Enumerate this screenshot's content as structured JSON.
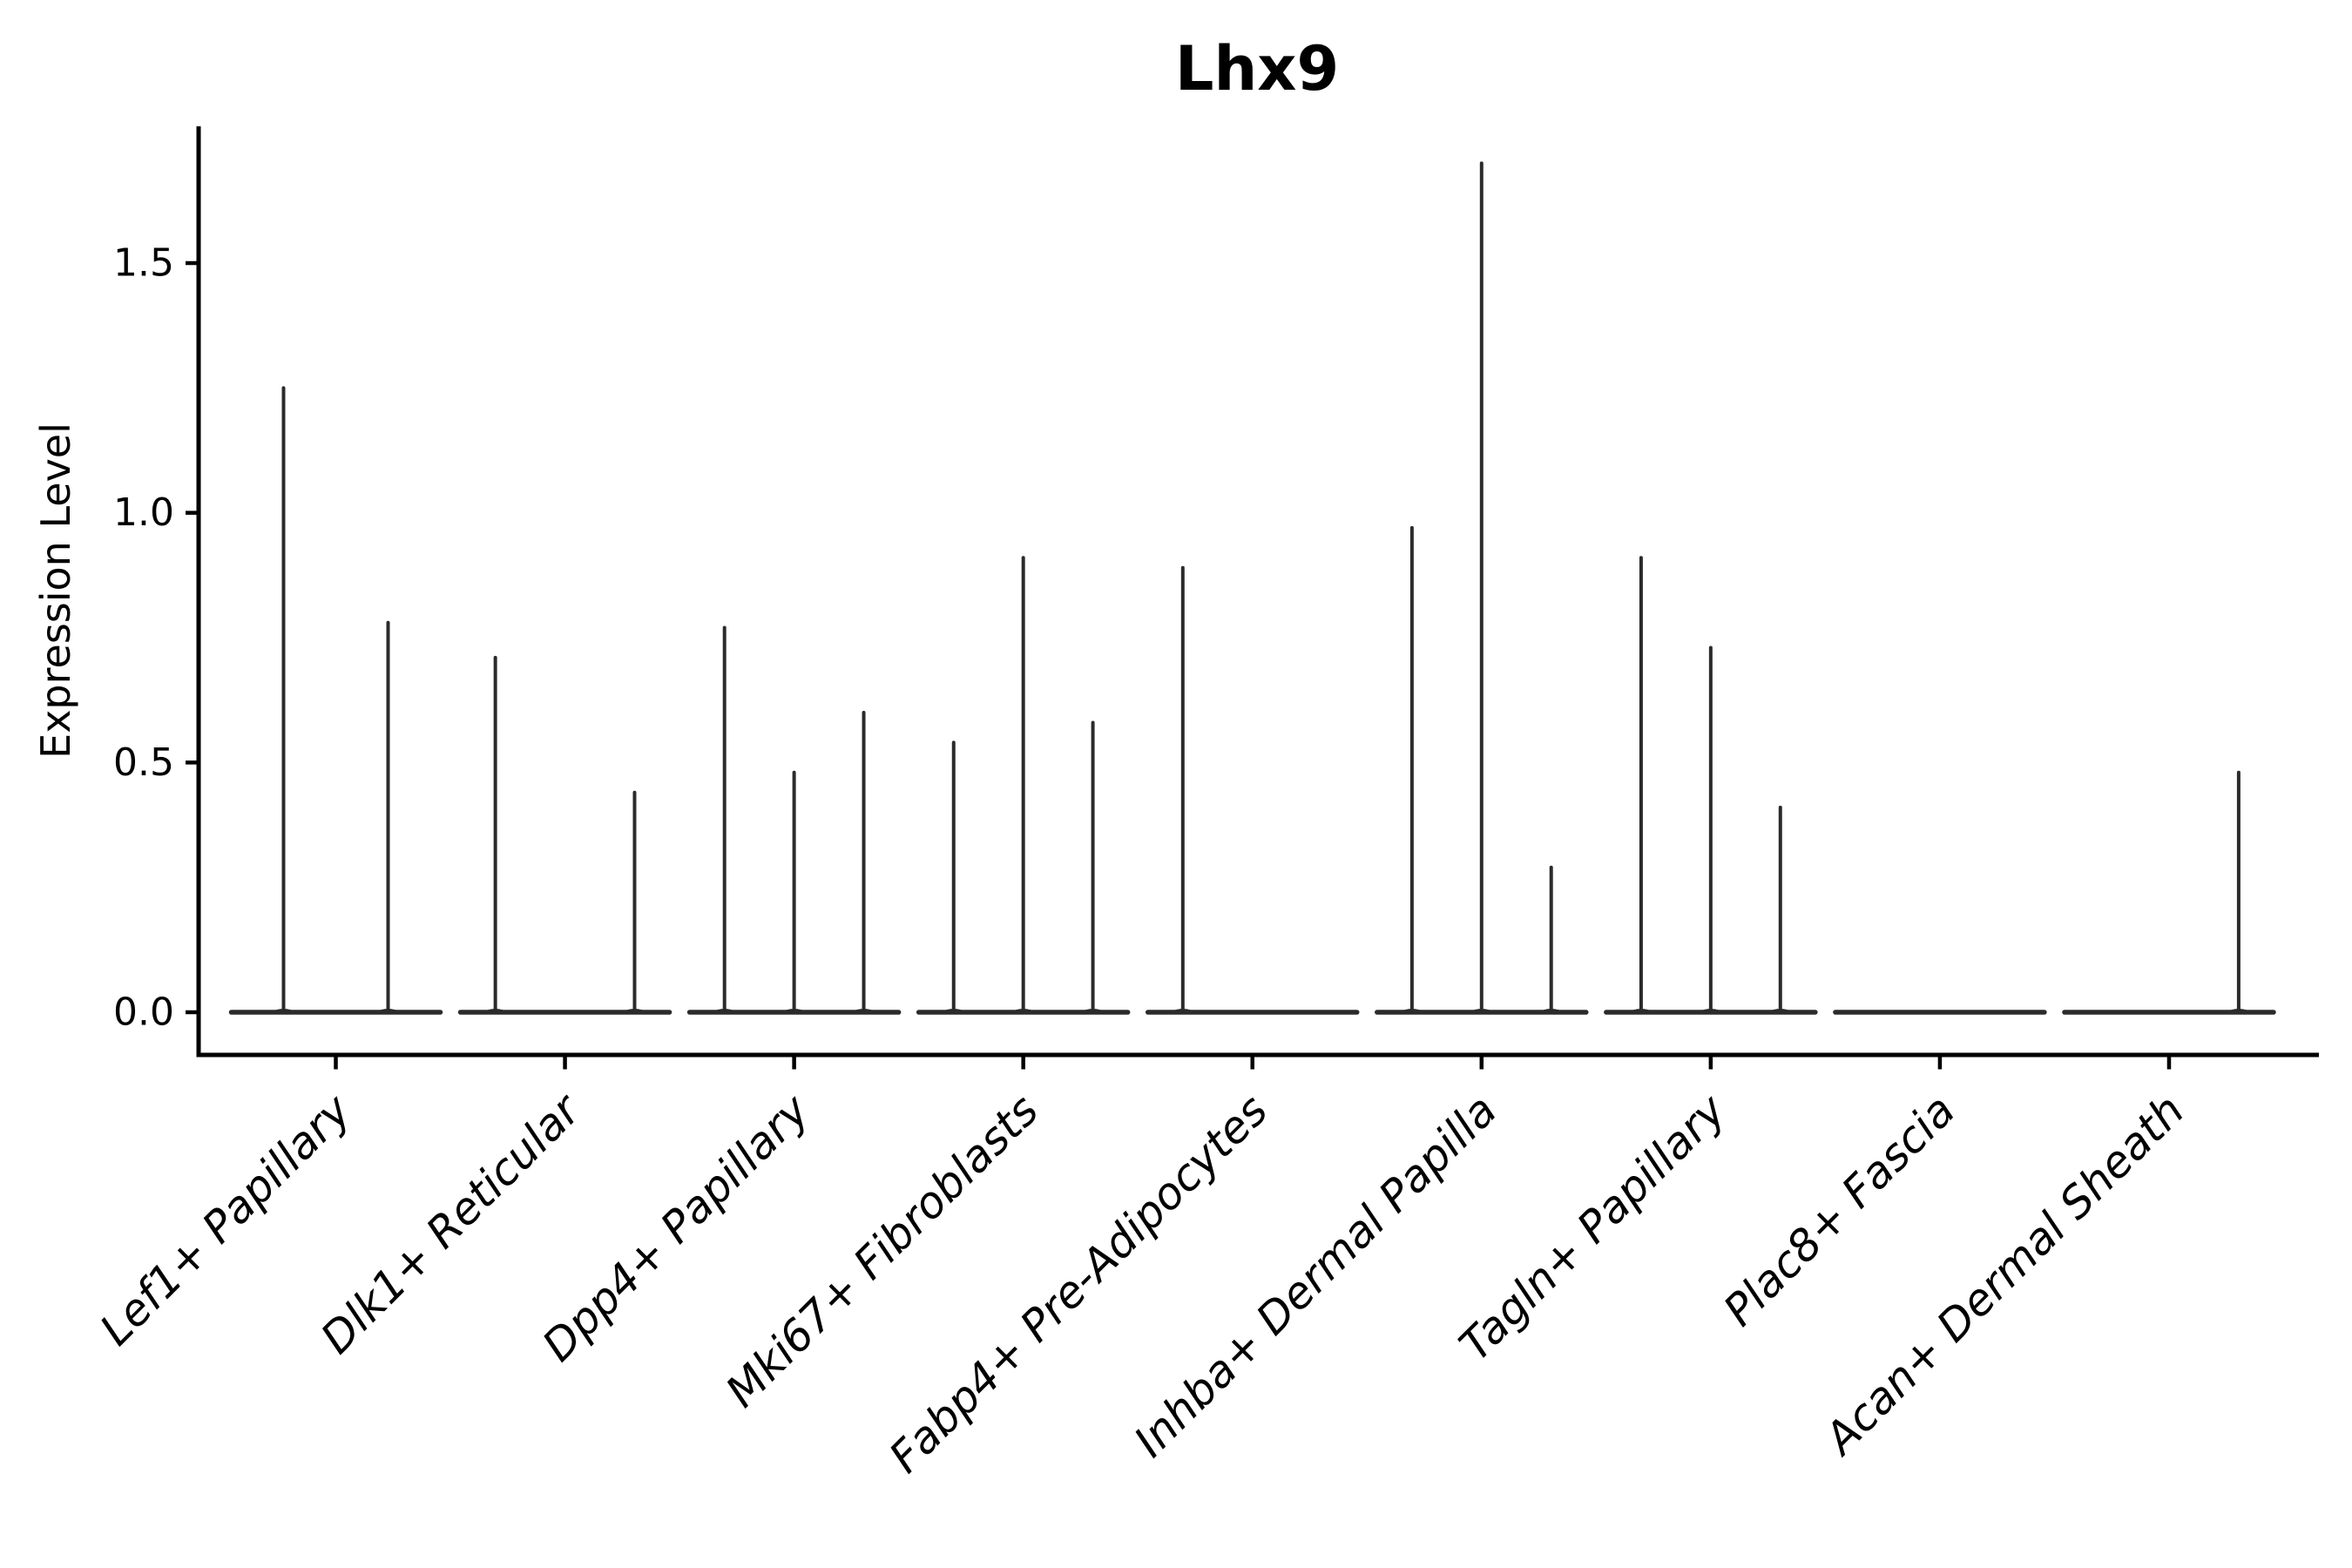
{
  "title": "Lhx9",
  "chart_data": {
    "type": "violin",
    "title": "Lhx9",
    "xlabel": "",
    "ylabel": "Expression Level",
    "ylim": [
      0,
      1.75
    ],
    "ytick_labels": [
      "0.0",
      "0.5",
      "1.0",
      "1.5"
    ],
    "ytick_values": [
      0.0,
      0.5,
      1.0,
      1.5
    ],
    "grid": false,
    "legend": false,
    "xtick_rotation": 45,
    "categories": [
      "Lef1+ Papillary",
      "Dlk1+ Reticular",
      "Dpp4+ Papillary",
      "Mki67+ Fibroblasts",
      "Fabp4+ Pre-Adipocytes",
      "Inhba+ Dermal Papilla",
      "Tagln+ Papillary",
      "Plac8+ Fascia",
      "Acan+ Dermal Sheath"
    ],
    "violins": [
      {
        "category": "Lef1+ Papillary",
        "spikes": [
          {
            "offset": -0.25,
            "max": 1.25
          },
          {
            "offset": 0.25,
            "max": 0.78
          }
        ]
      },
      {
        "category": "Dlk1+ Reticular",
        "spikes": [
          {
            "offset": -0.333,
            "max": 0.71
          },
          {
            "offset": 0.333,
            "max": 0.44
          }
        ]
      },
      {
        "category": "Dpp4+ Papillary",
        "spikes": [
          {
            "offset": -0.333,
            "max": 0.77
          },
          {
            "offset": 0,
            "max": 0.48
          },
          {
            "offset": 0.333,
            "max": 0.6
          }
        ]
      },
      {
        "category": "Mki67+ Fibroblasts",
        "spikes": [
          {
            "offset": -0.333,
            "max": 0.54
          },
          {
            "offset": 0,
            "max": 0.91
          },
          {
            "offset": 0.333,
            "max": 0.58
          }
        ]
      },
      {
        "category": "Fabp4+ Pre-Adipocytes",
        "spikes": [
          {
            "offset": -0.333,
            "max": 0.89
          }
        ]
      },
      {
        "category": "Inhba+ Dermal Papilla",
        "spikes": [
          {
            "offset": -0.333,
            "max": 0.97
          },
          {
            "offset": 0,
            "max": 1.7
          },
          {
            "offset": 0.333,
            "max": 0.29
          }
        ]
      },
      {
        "category": "Tagln+ Papillary",
        "spikes": [
          {
            "offset": -0.333,
            "max": 0.91
          },
          {
            "offset": 0,
            "max": 0.73
          },
          {
            "offset": 0.333,
            "max": 0.41
          }
        ]
      },
      {
        "category": "Plac8+ Fascia",
        "spikes": []
      },
      {
        "category": "Acan+ Dermal Sheath",
        "spikes": [
          {
            "offset": 0.333,
            "max": 0.48
          }
        ]
      }
    ],
    "colors": {
      "violin": "#2b2b2b",
      "axis": "#000000",
      "text": "#000000",
      "background": "#ffffff"
    }
  }
}
